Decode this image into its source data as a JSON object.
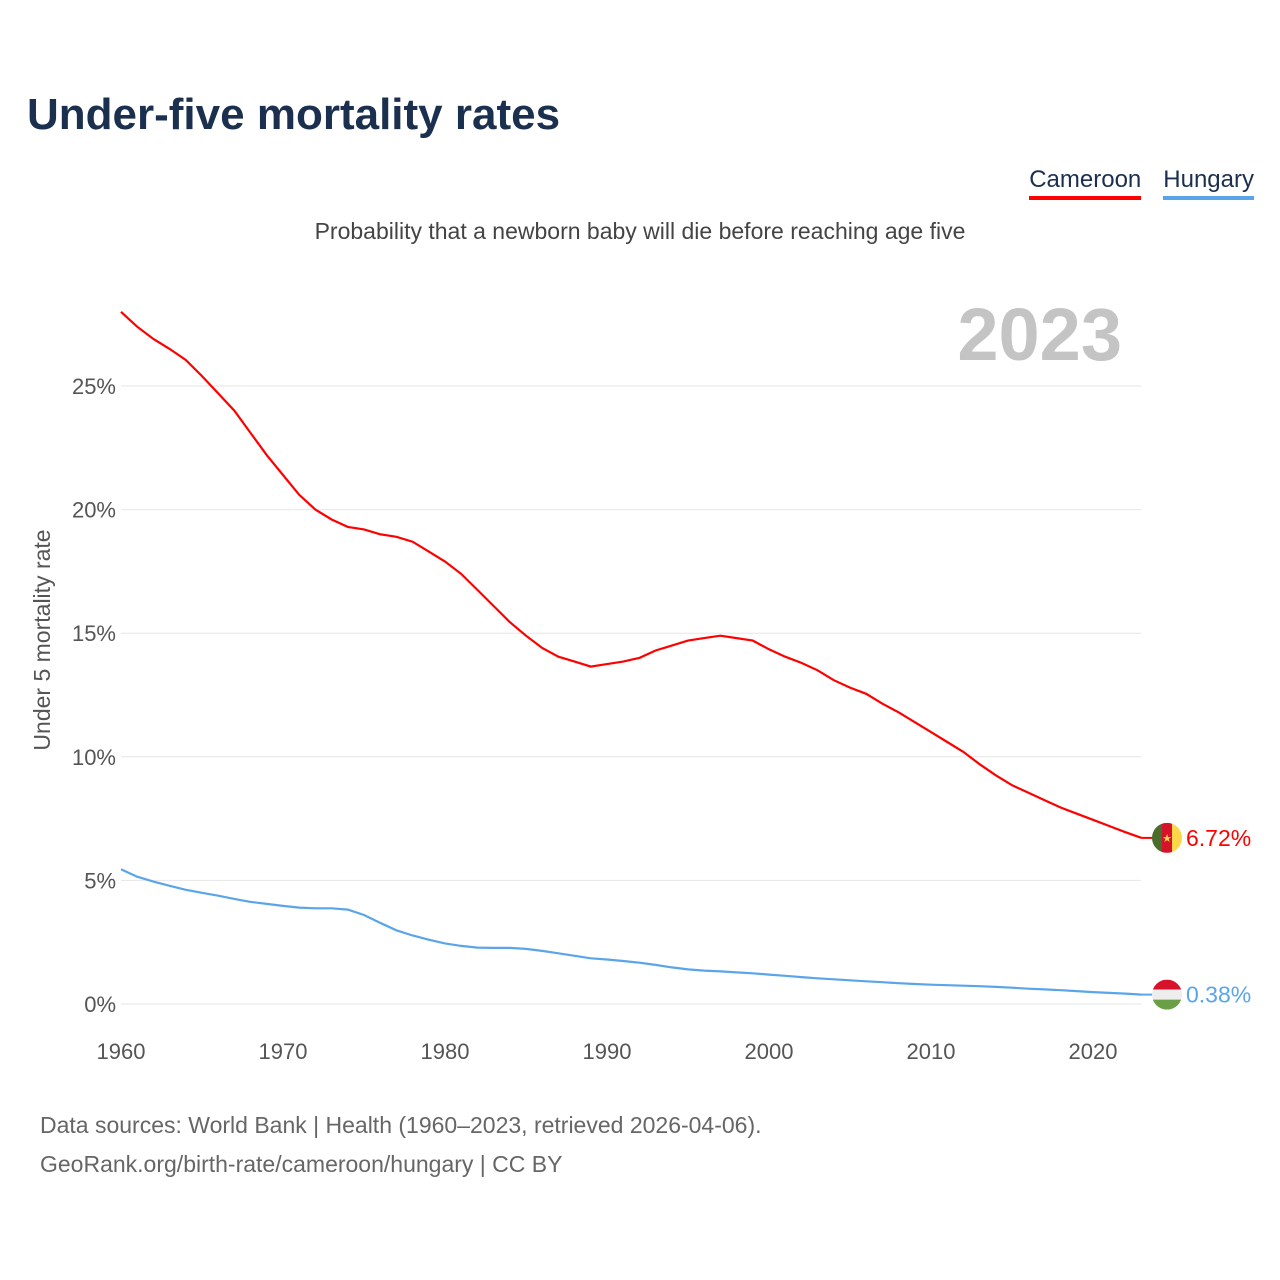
{
  "title": "Under-five mortality rates",
  "legend": [
    "Cameroon",
    "Hungary"
  ],
  "subtitle": "Probability that a newborn baby will die before reaching age five",
  "year_label": "2023",
  "footer": {
    "line1": "Data sources: World Bank | Health (1960–2023, retrieved 2026-04-06).",
    "line2": "GeoRank.org/birth-rate/cameroon/hungary | CC BY"
  },
  "colors": {
    "Cameroon": "#ff0000",
    "Hungary": "#5aa5ea"
  },
  "chart_data": {
    "type": "line",
    "title": "Under-five mortality rates",
    "xlabel": "",
    "ylabel": "Under 5 mortality rate",
    "xlim": [
      1960,
      2023
    ],
    "ylim": [
      0,
      28
    ],
    "xticks": [
      1960,
      1970,
      1980,
      1990,
      2000,
      2010,
      2020
    ],
    "yticks": [
      0,
      5,
      10,
      15,
      20,
      25
    ],
    "ytick_labels": [
      "0%",
      "5%",
      "10%",
      "15%",
      "20%",
      "25%"
    ],
    "grid": true,
    "x_start": 1960,
    "series": [
      {
        "name": "Cameroon",
        "end_label": "6.72%",
        "values": [
          28.0,
          27.4,
          26.9,
          26.5,
          26.05,
          25.4,
          24.7,
          24.0,
          23.1,
          22.2,
          21.4,
          20.6,
          20.0,
          19.6,
          19.3,
          19.2,
          19.0,
          18.9,
          18.7,
          18.3,
          17.9,
          17.4,
          16.75,
          16.1,
          15.45,
          14.9,
          14.4,
          14.05,
          13.85,
          13.65,
          13.75,
          13.85,
          14.0,
          14.3,
          14.5,
          14.7,
          14.8,
          14.9,
          14.8,
          14.7,
          14.35,
          14.05,
          13.8,
          13.5,
          13.1,
          12.8,
          12.55,
          12.15,
          11.8,
          11.4,
          11.0,
          10.6,
          10.2,
          9.7,
          9.25,
          8.85,
          8.55,
          8.25,
          7.95,
          7.7,
          7.45,
          7.2,
          6.95,
          6.72
        ]
      },
      {
        "name": "Hungary",
        "end_label": "0.38%",
        "values": [
          5.45,
          5.15,
          4.95,
          4.78,
          4.62,
          4.5,
          4.38,
          4.25,
          4.13,
          4.05,
          3.97,
          3.9,
          3.87,
          3.87,
          3.82,
          3.6,
          3.28,
          2.98,
          2.77,
          2.6,
          2.45,
          2.35,
          2.28,
          2.27,
          2.27,
          2.23,
          2.15,
          2.05,
          1.95,
          1.85,
          1.8,
          1.74,
          1.67,
          1.58,
          1.48,
          1.4,
          1.35,
          1.32,
          1.28,
          1.24,
          1.19,
          1.14,
          1.09,
          1.04,
          1.0,
          0.96,
          0.92,
          0.88,
          0.84,
          0.81,
          0.78,
          0.76,
          0.74,
          0.72,
          0.69,
          0.66,
          0.62,
          0.59,
          0.56,
          0.52,
          0.48,
          0.45,
          0.42,
          0.38
        ]
      }
    ]
  }
}
